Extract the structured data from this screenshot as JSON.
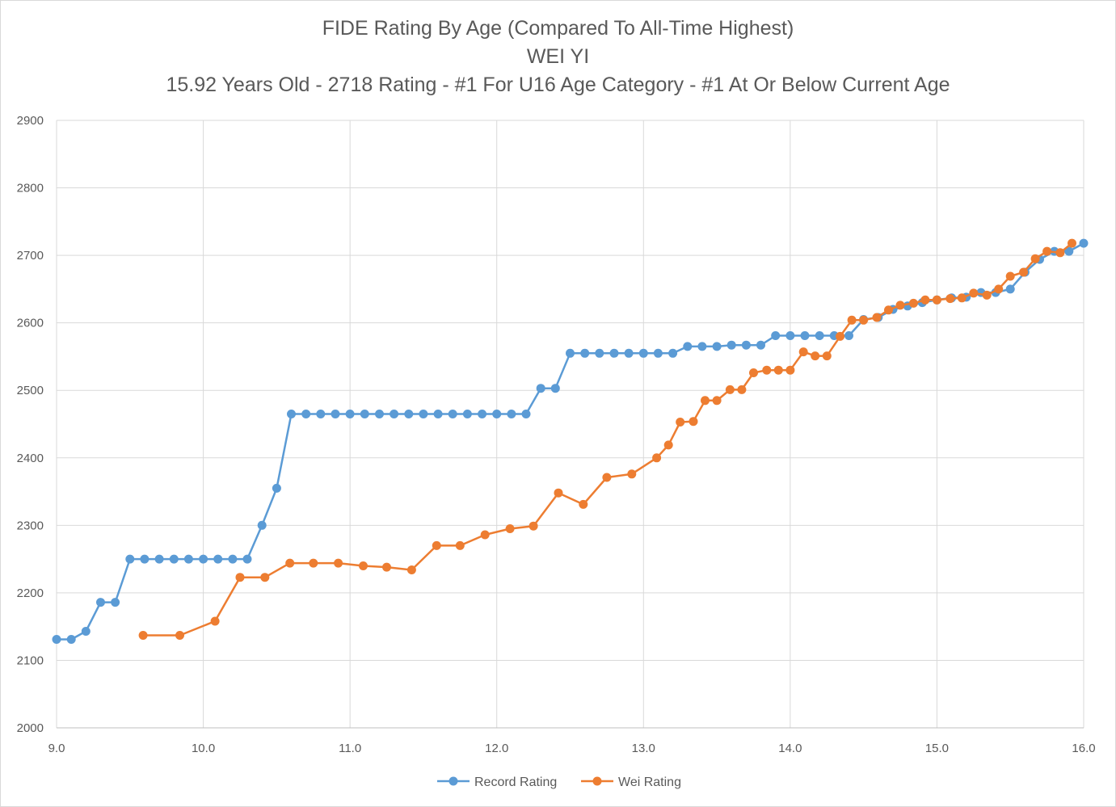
{
  "chart_data": {
    "type": "line",
    "title": "FIDE Rating By Age (Compared To All-Time Highest)",
    "subtitle": "WEI YI",
    "subtitle2": "15.92 Years Old - 2718 Rating - #1 For U16 Age Category - #1 At Or Below Current Age",
    "xlabel": "",
    "ylabel": "",
    "xlim": [
      9.0,
      16.0
    ],
    "ylim": [
      2000,
      2900
    ],
    "xticks": [
      "9.0",
      "10.0",
      "11.0",
      "12.0",
      "13.0",
      "14.0",
      "15.0",
      "16.0"
    ],
    "yticks": [
      "2000",
      "2100",
      "2200",
      "2300",
      "2400",
      "2500",
      "2600",
      "2700",
      "2800",
      "2900"
    ],
    "grid": true,
    "legend": "bottom",
    "series": [
      {
        "name": "Record Rating",
        "color": "#5b9bd5",
        "points": [
          [
            9.0,
            2131
          ],
          [
            9.1,
            2131
          ],
          [
            9.2,
            2143
          ],
          [
            9.3,
            2186
          ],
          [
            9.4,
            2186
          ],
          [
            9.5,
            2250
          ],
          [
            9.6,
            2250
          ],
          [
            9.7,
            2250
          ],
          [
            9.8,
            2250
          ],
          [
            9.9,
            2250
          ],
          [
            10.0,
            2250
          ],
          [
            10.1,
            2250
          ],
          [
            10.2,
            2250
          ],
          [
            10.3,
            2250
          ],
          [
            10.4,
            2300
          ],
          [
            10.5,
            2355
          ],
          [
            10.6,
            2465
          ],
          [
            10.7,
            2465
          ],
          [
            10.8,
            2465
          ],
          [
            10.9,
            2465
          ],
          [
            11.0,
            2465
          ],
          [
            11.1,
            2465
          ],
          [
            11.2,
            2465
          ],
          [
            11.3,
            2465
          ],
          [
            11.4,
            2465
          ],
          [
            11.5,
            2465
          ],
          [
            11.6,
            2465
          ],
          [
            11.7,
            2465
          ],
          [
            11.8,
            2465
          ],
          [
            11.9,
            2465
          ],
          [
            12.0,
            2465
          ],
          [
            12.1,
            2465
          ],
          [
            12.2,
            2465
          ],
          [
            12.3,
            2503
          ],
          [
            12.4,
            2503
          ],
          [
            12.5,
            2555
          ],
          [
            12.6,
            2555
          ],
          [
            12.7,
            2555
          ],
          [
            12.8,
            2555
          ],
          [
            12.9,
            2555
          ],
          [
            13.0,
            2555
          ],
          [
            13.1,
            2555
          ],
          [
            13.2,
            2555
          ],
          [
            13.3,
            2565
          ],
          [
            13.4,
            2565
          ],
          [
            13.5,
            2565
          ],
          [
            13.6,
            2567
          ],
          [
            13.7,
            2567
          ],
          [
            13.8,
            2567
          ],
          [
            13.9,
            2581
          ],
          [
            14.0,
            2581
          ],
          [
            14.1,
            2581
          ],
          [
            14.2,
            2581
          ],
          [
            14.3,
            2581
          ],
          [
            14.4,
            2581
          ],
          [
            14.5,
            2605
          ],
          [
            14.6,
            2608
          ],
          [
            14.7,
            2620
          ],
          [
            14.8,
            2625
          ],
          [
            14.9,
            2630
          ],
          [
            15.0,
            2634
          ],
          [
            15.1,
            2637
          ],
          [
            15.2,
            2638
          ],
          [
            15.3,
            2645
          ],
          [
            15.4,
            2645
          ],
          [
            15.5,
            2650
          ],
          [
            15.6,
            2675
          ],
          [
            15.7,
            2694
          ],
          [
            15.8,
            2706
          ],
          [
            15.9,
            2706
          ],
          [
            16.0,
            2718
          ]
        ]
      },
      {
        "name": "Wei Rating",
        "color": "#ed7d31",
        "points": [
          [
            9.59,
            2137
          ],
          [
            9.84,
            2137
          ],
          [
            10.08,
            2158
          ],
          [
            10.25,
            2223
          ],
          [
            10.42,
            2223
          ],
          [
            10.59,
            2244
          ],
          [
            10.75,
            2244
          ],
          [
            10.92,
            2244
          ],
          [
            11.09,
            2240
          ],
          [
            11.25,
            2238
          ],
          [
            11.42,
            2234
          ],
          [
            11.59,
            2270
          ],
          [
            11.75,
            2270
          ],
          [
            11.92,
            2286
          ],
          [
            12.09,
            2295
          ],
          [
            12.25,
            2299
          ],
          [
            12.42,
            2348
          ],
          [
            12.59,
            2331
          ],
          [
            12.75,
            2371
          ],
          [
            12.92,
            2376
          ],
          [
            13.09,
            2400
          ],
          [
            13.17,
            2419
          ],
          [
            13.25,
            2453
          ],
          [
            13.34,
            2454
          ],
          [
            13.42,
            2485
          ],
          [
            13.5,
            2485
          ],
          [
            13.59,
            2501
          ],
          [
            13.67,
            2501
          ],
          [
            13.75,
            2526
          ],
          [
            13.84,
            2530
          ],
          [
            13.92,
            2530
          ],
          [
            14.0,
            2530
          ],
          [
            14.09,
            2557
          ],
          [
            14.17,
            2551
          ],
          [
            14.25,
            2551
          ],
          [
            14.34,
            2580
          ],
          [
            14.42,
            2604
          ],
          [
            14.5,
            2604
          ],
          [
            14.59,
            2608
          ],
          [
            14.67,
            2619
          ],
          [
            14.75,
            2626
          ],
          [
            14.84,
            2629
          ],
          [
            14.92,
            2634
          ],
          [
            15.0,
            2634
          ],
          [
            15.09,
            2636
          ],
          [
            15.17,
            2637
          ],
          [
            15.25,
            2644
          ],
          [
            15.34,
            2641
          ],
          [
            15.42,
            2650
          ],
          [
            15.5,
            2669
          ],
          [
            15.59,
            2675
          ],
          [
            15.67,
            2695
          ],
          [
            15.75,
            2706
          ],
          [
            15.84,
            2704
          ],
          [
            15.92,
            2718
          ]
        ]
      }
    ]
  }
}
